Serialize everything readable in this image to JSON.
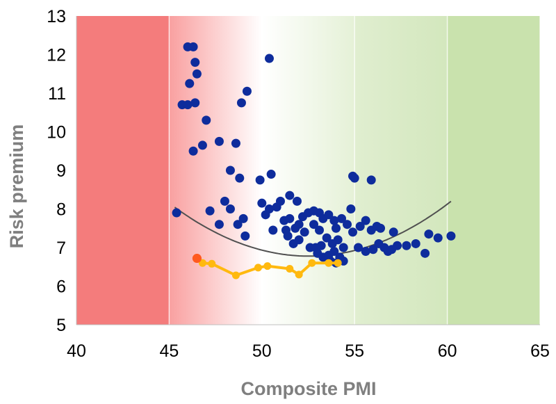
{
  "chart_data": {
    "type": "scatter",
    "xlabel": "Composite PMI",
    "ylabel": "Risk premium",
    "xlim": [
      40,
      65
    ],
    "ylim": [
      5,
      13
    ],
    "xticks": [
      40,
      45,
      50,
      55,
      60,
      65
    ],
    "yticks": [
      5,
      6,
      7,
      8,
      9,
      10,
      11,
      12,
      13
    ],
    "grid": "vertical",
    "legend": "none",
    "background_zones": [
      {
        "from": 40,
        "to": 45,
        "color": "#f47c7c"
      },
      {
        "from": 45,
        "to": 50,
        "color_from": "#f9a0a0",
        "color_to": "#ffffff"
      },
      {
        "from": 50,
        "to": 55,
        "color_from": "#ffffff",
        "color_to": "#e5f1d7"
      },
      {
        "from": 55,
        "to": 60,
        "color_from": "#e0eed0",
        "color_to": "#d3e7bd"
      },
      {
        "from": 60,
        "to": 65,
        "color": "#c9e2ad"
      }
    ],
    "series": [
      {
        "style": "markers",
        "color": "#0e2c9c",
        "points": [
          [
            46.0,
            12.2
          ],
          [
            46.3,
            12.2
          ],
          [
            46.4,
            11.8
          ],
          [
            46.5,
            11.5
          ],
          [
            46.1,
            11.25
          ],
          [
            46.4,
            10.75
          ],
          [
            45.7,
            10.7
          ],
          [
            46.0,
            10.7
          ],
          [
            47.0,
            10.3
          ],
          [
            46.8,
            9.65
          ],
          [
            46.3,
            9.5
          ],
          [
            47.7,
            9.75
          ],
          [
            48.6,
            9.7
          ],
          [
            48.3,
            9.0
          ],
          [
            48.8,
            8.8
          ],
          [
            45.4,
            7.9
          ],
          [
            47.2,
            7.95
          ],
          [
            48.0,
            8.2
          ],
          [
            48.3,
            8.0
          ],
          [
            48.7,
            7.6
          ],
          [
            49.0,
            7.75
          ],
          [
            47.7,
            7.6
          ],
          [
            49.1,
            7.3
          ],
          [
            49.2,
            11.05
          ],
          [
            48.9,
            10.75
          ],
          [
            50.4,
            11.9
          ],
          [
            50.5,
            8.9
          ],
          [
            49.9,
            8.75
          ],
          [
            50.0,
            8.15
          ],
          [
            50.4,
            8.0
          ],
          [
            50.8,
            8.05
          ],
          [
            51.0,
            8.2
          ],
          [
            51.2,
            7.7
          ],
          [
            51.5,
            8.35
          ],
          [
            51.9,
            8.2
          ],
          [
            50.2,
            7.85
          ],
          [
            50.6,
            7.45
          ],
          [
            51.3,
            7.45
          ],
          [
            51.5,
            7.75
          ],
          [
            51.8,
            7.5
          ],
          [
            52.0,
            7.6
          ],
          [
            52.2,
            7.8
          ],
          [
            52.5,
            7.9
          ],
          [
            52.8,
            7.95
          ],
          [
            53.1,
            7.9
          ],
          [
            53.3,
            7.75
          ],
          [
            53.6,
            7.85
          ],
          [
            53.9,
            7.7
          ],
          [
            54.3,
            7.75
          ],
          [
            51.4,
            7.3
          ],
          [
            51.7,
            7.1
          ],
          [
            52.0,
            7.2
          ],
          [
            52.3,
            7.4
          ],
          [
            52.6,
            7.0
          ],
          [
            52.9,
            7.0
          ],
          [
            53.2,
            7.05
          ],
          [
            53.5,
            7.25
          ],
          [
            53.8,
            7.1
          ],
          [
            54.1,
            7.2
          ],
          [
            54.4,
            7.0
          ],
          [
            53.0,
            6.85
          ],
          [
            53.3,
            6.75
          ],
          [
            53.6,
            6.8
          ],
          [
            53.9,
            6.9
          ],
          [
            54.2,
            6.75
          ],
          [
            54.0,
            6.6
          ],
          [
            54.4,
            6.65
          ],
          [
            53.7,
            6.65
          ],
          [
            52.8,
            7.6
          ],
          [
            53.1,
            7.45
          ],
          [
            54.0,
            7.5
          ],
          [
            54.6,
            7.6
          ],
          [
            54.9,
            7.4
          ],
          [
            54.8,
            8.0
          ],
          [
            54.9,
            8.85
          ],
          [
            55.0,
            8.8
          ],
          [
            55.9,
            8.75
          ],
          [
            55.3,
            7.55
          ],
          [
            55.6,
            7.7
          ],
          [
            55.9,
            7.45
          ],
          [
            56.2,
            7.55
          ],
          [
            56.4,
            7.5
          ],
          [
            55.2,
            7.0
          ],
          [
            55.6,
            6.9
          ],
          [
            56.0,
            6.95
          ],
          [
            56.3,
            7.1
          ],
          [
            56.6,
            7.0
          ],
          [
            56.8,
            6.9
          ],
          [
            57.1,
            7.4
          ],
          [
            57.0,
            6.95
          ],
          [
            57.3,
            7.05
          ],
          [
            57.8,
            7.05
          ],
          [
            58.3,
            7.1
          ],
          [
            58.8,
            6.85
          ],
          [
            59.0,
            7.35
          ],
          [
            59.5,
            7.25
          ],
          [
            60.2,
            7.3
          ]
        ]
      },
      {
        "style": "line-markers",
        "color": "#ffb90f",
        "points": [
          [
            54.1,
            6.6
          ],
          [
            53.6,
            6.6
          ],
          [
            52.7,
            6.6
          ],
          [
            52.0,
            6.3
          ],
          [
            51.5,
            6.45
          ],
          [
            50.3,
            6.52
          ],
          [
            49.8,
            6.48
          ],
          [
            48.6,
            6.28
          ],
          [
            47.3,
            6.58
          ],
          [
            46.8,
            6.6
          ]
        ]
      },
      {
        "style": "markers",
        "color": "#ff5a1f",
        "points": [
          [
            46.5,
            6.72
          ]
        ]
      },
      {
        "style": "trendline",
        "kind": "polynomial-2",
        "color": "#505050",
        "coefficients": [
          73.5235,
          -2.5408,
          0.02418
        ],
        "domain": [
          45.3,
          60.2
        ]
      }
    ]
  }
}
